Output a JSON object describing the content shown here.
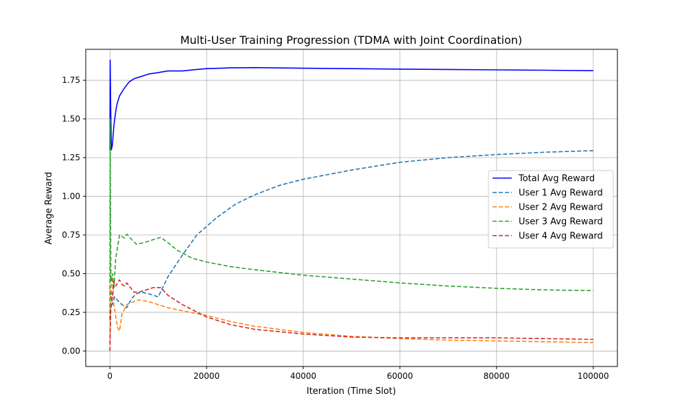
{
  "chart_data": {
    "type": "line",
    "title": "Multi-User Training Progression (TDMA with Joint Coordination)",
    "xlabel": "Iteration (Time Slot)",
    "ylabel": "Average Reward",
    "xlim": [
      -5000,
      105000
    ],
    "ylim": [
      -0.1,
      1.95
    ],
    "xticks": [
      0,
      20000,
      40000,
      60000,
      80000,
      100000
    ],
    "yticks": [
      0.0,
      0.25,
      0.5,
      0.75,
      1.0,
      1.25,
      1.5,
      1.75
    ],
    "ytick_labels": [
      "0.00",
      "0.25",
      "0.50",
      "0.75",
      "1.00",
      "1.25",
      "1.50",
      "1.75"
    ],
    "grid": true,
    "legend_position": "center-right",
    "series": [
      {
        "name": "Total Avg Reward",
        "color": "#0000ff",
        "style": "solid",
        "x": [
          0,
          50,
          150,
          300,
          500,
          800,
          1200,
          1500,
          2000,
          3000,
          4000,
          5000,
          6000,
          8000,
          10000,
          12000,
          15000,
          18000,
          20000,
          25000,
          30000,
          40000,
          50000,
          60000,
          70000,
          80000,
          90000,
          100000
        ],
        "y": [
          1.3,
          1.88,
          1.6,
          1.3,
          1.33,
          1.45,
          1.55,
          1.6,
          1.65,
          1.7,
          1.74,
          1.76,
          1.77,
          1.79,
          1.8,
          1.81,
          1.81,
          1.82,
          1.825,
          1.83,
          1.832,
          1.828,
          1.825,
          1.822,
          1.82,
          1.817,
          1.815,
          1.812
        ]
      },
      {
        "name": "User 1 Avg Reward",
        "color": "#1f77b4",
        "style": "dashed",
        "x": [
          0,
          200,
          500,
          1000,
          1500,
          2500,
          3500,
          4500,
          5500,
          6500,
          8000,
          9000,
          10000,
          12000,
          15000,
          18000,
          22000,
          26000,
          30000,
          35000,
          40000,
          50000,
          60000,
          70000,
          80000,
          90000,
          100000
        ],
        "y": [
          0.05,
          0.4,
          0.3,
          0.35,
          0.33,
          0.3,
          0.28,
          0.34,
          0.37,
          0.38,
          0.37,
          0.36,
          0.35,
          0.48,
          0.62,
          0.75,
          0.86,
          0.95,
          1.01,
          1.07,
          1.11,
          1.17,
          1.22,
          1.25,
          1.27,
          1.285,
          1.295
        ]
      },
      {
        "name": "User 2 Avg Reward",
        "color": "#ff7f0e",
        "style": "dashed",
        "x": [
          0,
          200,
          500,
          800,
          1200,
          1600,
          2000,
          2500,
          3500,
          5000,
          6000,
          8000,
          10000,
          12000,
          15000,
          20000,
          25000,
          30000,
          40000,
          50000,
          60000,
          70000,
          80000,
          90000,
          100000
        ],
        "y": [
          0.05,
          0.4,
          0.48,
          0.3,
          0.22,
          0.15,
          0.13,
          0.24,
          0.3,
          0.32,
          0.33,
          0.32,
          0.3,
          0.28,
          0.26,
          0.23,
          0.19,
          0.16,
          0.12,
          0.095,
          0.08,
          0.07,
          0.065,
          0.06,
          0.055
        ]
      },
      {
        "name": "User 3 Avg Reward",
        "color": "#2ca02c",
        "style": "dashed",
        "x": [
          0,
          50,
          200,
          500,
          800,
          1200,
          2000,
          3000,
          3500,
          4500,
          5500,
          7000,
          9000,
          10500,
          12000,
          14000,
          17000,
          20000,
          25000,
          30000,
          40000,
          50000,
          60000,
          70000,
          80000,
          90000,
          100000
        ],
        "y": [
          0.2,
          1.5,
          0.45,
          0.5,
          0.4,
          0.6,
          0.75,
          0.73,
          0.755,
          0.72,
          0.69,
          0.7,
          0.72,
          0.735,
          0.7,
          0.65,
          0.6,
          0.575,
          0.545,
          0.525,
          0.49,
          0.465,
          0.44,
          0.42,
          0.405,
          0.395,
          0.39
        ]
      },
      {
        "name": "User 4 Avg Reward",
        "color": "#d62728",
        "style": "dashed",
        "x": [
          0,
          150,
          400,
          800,
          1200,
          2000,
          2500,
          3000,
          3500,
          4500,
          5000,
          6000,
          7000,
          9000,
          10500,
          12000,
          15000,
          20000,
          25000,
          30000,
          40000,
          50000,
          60000,
          70000,
          80000,
          90000,
          100000
        ],
        "y": [
          0.0,
          0.25,
          0.32,
          0.45,
          0.42,
          0.46,
          0.43,
          0.42,
          0.44,
          0.4,
          0.38,
          0.38,
          0.39,
          0.41,
          0.41,
          0.36,
          0.3,
          0.22,
          0.17,
          0.14,
          0.11,
          0.09,
          0.085,
          0.085,
          0.085,
          0.08,
          0.075
        ]
      }
    ]
  }
}
